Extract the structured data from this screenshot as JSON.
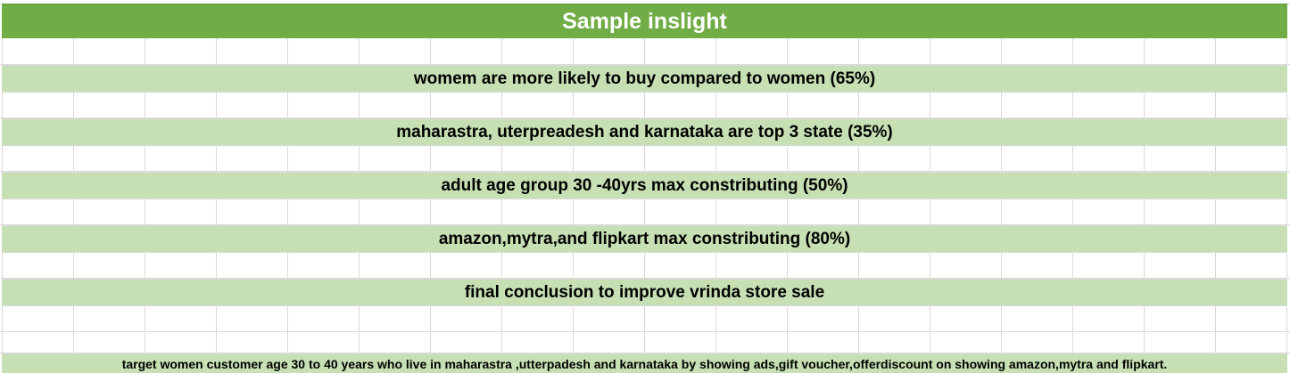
{
  "sheet": {
    "title": "Sample inslight",
    "insights": [
      "womem are more likely to buy compared to women (65%)",
      "maharastra, uterpreadesh and karnataka are top 3 state (35%)",
      "adult age group 30 -40yrs max constributing (50%)",
      "amazon,mytra,and flipkart max constributing (80%)",
      "final conclusion to improve vrinda store sale"
    ],
    "footer_note": "target women customer age 30 to 40 years who live in maharastra ,utterpadesh and karnataka by showing ads,gift voucher,offerdiscount on showing amazon,mytra and flipkart."
  },
  "colors": {
    "title_fill": "#70ad47",
    "insight_fill": "#c6e0b4",
    "gridline": "#d9d9d9"
  }
}
